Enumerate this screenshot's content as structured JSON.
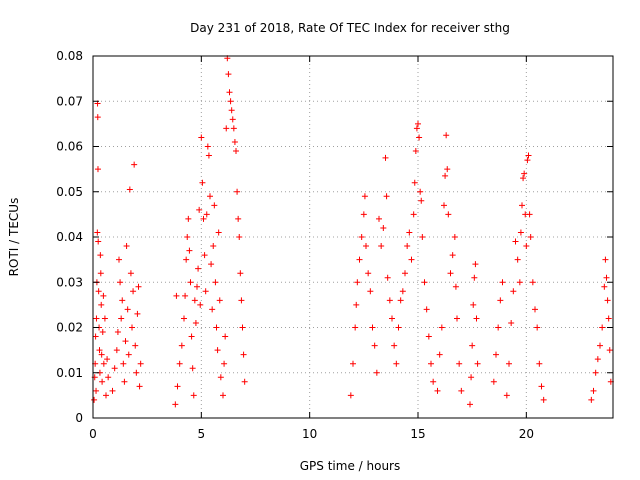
{
  "chart_data": {
    "type": "scatter",
    "title": "Day 231 of 2018, Rate Of TEC Index for receiver sthg",
    "xlabel": "GPS time / hours",
    "ylabel": "ROTI / TECUs",
    "xlim": [
      0,
      24
    ],
    "ylim": [
      0,
      0.08
    ],
    "xticks": [
      0,
      5,
      10,
      15,
      20
    ],
    "xtick_labels": [
      "0",
      "5",
      "10",
      "15",
      "20"
    ],
    "yticks": [
      0,
      0.01,
      0.02,
      0.03,
      0.04,
      0.05,
      0.06,
      0.07,
      0.08
    ],
    "ytick_labels": [
      "0",
      "0.01",
      "0.02",
      "0.03",
      "0.04",
      "0.05",
      "0.06",
      "0.07",
      "0.08"
    ],
    "grid": true,
    "marker": "+",
    "color": "#ff0000",
    "series": [
      {
        "name": "ROTI",
        "points": [
          [
            0.05,
            0.004
          ],
          [
            0.08,
            0.009
          ],
          [
            0.1,
            0.012
          ],
          [
            0.12,
            0.018
          ],
          [
            0.14,
            0.006
          ],
          [
            0.16,
            0.022
          ],
          [
            0.18,
            0.03
          ],
          [
            0.2,
            0.041
          ],
          [
            0.21,
            0.0695
          ],
          [
            0.22,
            0.0665
          ],
          [
            0.23,
            0.055
          ],
          [
            0.24,
            0.039
          ],
          [
            0.26,
            0.028
          ],
          [
            0.28,
            0.02
          ],
          [
            0.3,
            0.015
          ],
          [
            0.32,
            0.01
          ],
          [
            0.34,
            0.036
          ],
          [
            0.36,
            0.032
          ],
          [
            0.38,
            0.025
          ],
          [
            0.4,
            0.014
          ],
          [
            0.42,
            0.008
          ],
          [
            0.45,
            0.019
          ],
          [
            0.48,
            0.027
          ],
          [
            0.5,
            0.012
          ],
          [
            0.55,
            0.022
          ],
          [
            0.6,
            0.005
          ],
          [
            0.65,
            0.013
          ],
          [
            0.7,
            0.009
          ],
          [
            0.9,
            0.006
          ],
          [
            1.0,
            0.011
          ],
          [
            1.1,
            0.015
          ],
          [
            1.15,
            0.019
          ],
          [
            1.2,
            0.035
          ],
          [
            1.25,
            0.03
          ],
          [
            1.3,
            0.022
          ],
          [
            1.35,
            0.026
          ],
          [
            1.4,
            0.012
          ],
          [
            1.45,
            0.008
          ],
          [
            1.5,
            0.017
          ],
          [
            1.55,
            0.038
          ],
          [
            1.6,
            0.024
          ],
          [
            1.65,
            0.014
          ],
          [
            1.7,
            0.0505
          ],
          [
            1.75,
            0.032
          ],
          [
            1.8,
            0.02
          ],
          [
            1.85,
            0.028
          ],
          [
            1.9,
            0.056
          ],
          [
            1.95,
            0.016
          ],
          [
            2.0,
            0.01
          ],
          [
            2.05,
            0.023
          ],
          [
            2.1,
            0.029
          ],
          [
            2.15,
            0.007
          ],
          [
            2.2,
            0.012
          ],
          [
            3.8,
            0.003
          ],
          [
            3.85,
            0.027
          ],
          [
            3.9,
            0.007
          ],
          [
            4.0,
            0.012
          ],
          [
            4.1,
            0.016
          ],
          [
            4.2,
            0.022
          ],
          [
            4.25,
            0.027
          ],
          [
            4.3,
            0.035
          ],
          [
            4.35,
            0.04
          ],
          [
            4.4,
            0.044
          ],
          [
            4.45,
            0.037
          ],
          [
            4.5,
            0.03
          ],
          [
            4.55,
            0.018
          ],
          [
            4.6,
            0.011
          ],
          [
            4.65,
            0.005
          ],
          [
            4.7,
            0.026
          ],
          [
            4.75,
            0.021
          ],
          [
            4.8,
            0.029
          ],
          [
            4.85,
            0.033
          ],
          [
            4.9,
            0.046
          ],
          [
            4.95,
            0.025
          ],
          [
            5.0,
            0.062
          ],
          [
            5.05,
            0.052
          ],
          [
            5.1,
            0.044
          ],
          [
            5.15,
            0.036
          ],
          [
            5.2,
            0.028
          ],
          [
            5.25,
            0.045
          ],
          [
            5.3,
            0.06
          ],
          [
            5.35,
            0.058
          ],
          [
            5.4,
            0.049
          ],
          [
            5.45,
            0.034
          ],
          [
            5.5,
            0.024
          ],
          [
            5.55,
            0.038
          ],
          [
            5.6,
            0.047
          ],
          [
            5.65,
            0.03
          ],
          [
            5.7,
            0.02
          ],
          [
            5.75,
            0.015
          ],
          [
            5.8,
            0.041
          ],
          [
            5.85,
            0.026
          ],
          [
            5.9,
            0.009
          ],
          [
            6.0,
            0.005
          ],
          [
            6.05,
            0.012
          ],
          [
            6.1,
            0.018
          ],
          [
            6.15,
            0.064
          ],
          [
            6.2,
            0.0795
          ],
          [
            6.25,
            0.076
          ],
          [
            6.3,
            0.072
          ],
          [
            6.35,
            0.07
          ],
          [
            6.4,
            0.068
          ],
          [
            6.45,
            0.066
          ],
          [
            6.5,
            0.064
          ],
          [
            6.55,
            0.061
          ],
          [
            6.6,
            0.059
          ],
          [
            6.65,
            0.05
          ],
          [
            6.7,
            0.044
          ],
          [
            6.75,
            0.04
          ],
          [
            6.8,
            0.032
          ],
          [
            6.85,
            0.026
          ],
          [
            6.9,
            0.02
          ],
          [
            6.95,
            0.014
          ],
          [
            7.0,
            0.008
          ],
          [
            11.9,
            0.005
          ],
          [
            12.0,
            0.012
          ],
          [
            12.1,
            0.02
          ],
          [
            12.15,
            0.025
          ],
          [
            12.2,
            0.03
          ],
          [
            12.3,
            0.035
          ],
          [
            12.4,
            0.04
          ],
          [
            12.5,
            0.045
          ],
          [
            12.55,
            0.049
          ],
          [
            12.6,
            0.038
          ],
          [
            12.7,
            0.032
          ],
          [
            12.8,
            0.028
          ],
          [
            12.9,
            0.02
          ],
          [
            13.0,
            0.016
          ],
          [
            13.1,
            0.01
          ],
          [
            13.2,
            0.044
          ],
          [
            13.3,
            0.038
          ],
          [
            13.4,
            0.042
          ],
          [
            13.5,
            0.0575
          ],
          [
            13.55,
            0.049
          ],
          [
            13.6,
            0.031
          ],
          [
            13.7,
            0.026
          ],
          [
            13.8,
            0.022
          ],
          [
            13.9,
            0.016
          ],
          [
            14.0,
            0.012
          ],
          [
            14.1,
            0.02
          ],
          [
            14.2,
            0.026
          ],
          [
            14.3,
            0.028
          ],
          [
            14.4,
            0.032
          ],
          [
            14.5,
            0.038
          ],
          [
            14.6,
            0.041
          ],
          [
            14.7,
            0.035
          ],
          [
            14.8,
            0.045
          ],
          [
            14.85,
            0.052
          ],
          [
            14.9,
            0.059
          ],
          [
            14.95,
            0.064
          ],
          [
            15.0,
            0.065
          ],
          [
            15.05,
            0.062
          ],
          [
            15.1,
            0.05
          ],
          [
            15.15,
            0.048
          ],
          [
            15.2,
            0.04
          ],
          [
            15.3,
            0.03
          ],
          [
            15.4,
            0.024
          ],
          [
            15.5,
            0.018
          ],
          [
            15.6,
            0.012
          ],
          [
            15.7,
            0.008
          ],
          [
            15.9,
            0.006
          ],
          [
            16.0,
            0.014
          ],
          [
            16.1,
            0.02
          ],
          [
            16.2,
            0.047
          ],
          [
            16.25,
            0.0535
          ],
          [
            16.3,
            0.0625
          ],
          [
            16.35,
            0.055
          ],
          [
            16.4,
            0.045
          ],
          [
            16.5,
            0.032
          ],
          [
            16.6,
            0.036
          ],
          [
            16.7,
            0.04
          ],
          [
            16.75,
            0.029
          ],
          [
            16.8,
            0.022
          ],
          [
            16.9,
            0.012
          ],
          [
            17.0,
            0.006
          ],
          [
            17.4,
            0.003
          ],
          [
            17.45,
            0.009
          ],
          [
            17.5,
            0.016
          ],
          [
            17.55,
            0.025
          ],
          [
            17.6,
            0.031
          ],
          [
            17.65,
            0.034
          ],
          [
            17.7,
            0.022
          ],
          [
            17.75,
            0.012
          ],
          [
            18.5,
            0.008
          ],
          [
            18.6,
            0.014
          ],
          [
            18.7,
            0.02
          ],
          [
            18.8,
            0.026
          ],
          [
            18.9,
            0.03
          ],
          [
            19.1,
            0.005
          ],
          [
            19.2,
            0.012
          ],
          [
            19.3,
            0.021
          ],
          [
            19.4,
            0.028
          ],
          [
            19.5,
            0.039
          ],
          [
            19.6,
            0.035
          ],
          [
            19.7,
            0.03
          ],
          [
            19.75,
            0.041
          ],
          [
            19.8,
            0.047
          ],
          [
            19.85,
            0.053
          ],
          [
            19.9,
            0.054
          ],
          [
            19.95,
            0.045
          ],
          [
            20.0,
            0.038
          ],
          [
            20.05,
            0.057
          ],
          [
            20.1,
            0.058
          ],
          [
            20.15,
            0.045
          ],
          [
            20.2,
            0.04
          ],
          [
            20.3,
            0.03
          ],
          [
            20.4,
            0.024
          ],
          [
            20.5,
            0.02
          ],
          [
            20.6,
            0.012
          ],
          [
            20.7,
            0.007
          ],
          [
            20.8,
            0.004
          ],
          [
            23.0,
            0.004
          ],
          [
            23.1,
            0.006
          ],
          [
            23.2,
            0.01
          ],
          [
            23.3,
            0.013
          ],
          [
            23.4,
            0.016
          ],
          [
            23.5,
            0.02
          ],
          [
            23.6,
            0.029
          ],
          [
            23.65,
            0.035
          ],
          [
            23.7,
            0.031
          ],
          [
            23.75,
            0.026
          ],
          [
            23.8,
            0.022
          ],
          [
            23.85,
            0.015
          ],
          [
            23.9,
            0.008
          ]
        ]
      }
    ]
  }
}
